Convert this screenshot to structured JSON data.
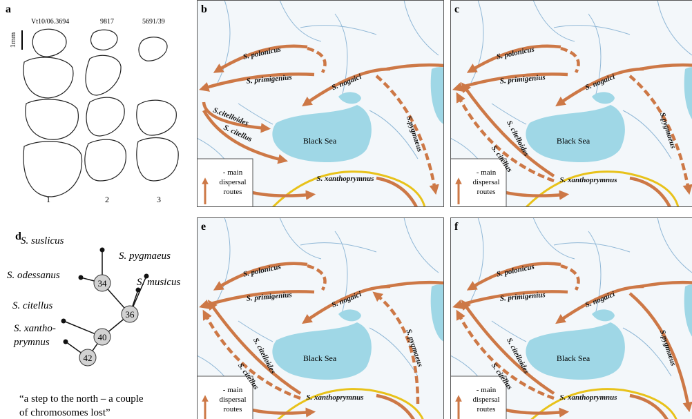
{
  "panel_a": {
    "label": "a",
    "specimens": [
      "Vt10/06.3694",
      "9817",
      "5691/39"
    ],
    "scale": "1mm",
    "numbers": [
      "1",
      "2",
      "3"
    ]
  },
  "maps": [
    {
      "label": "b",
      "species": [
        "S. polonicus",
        "S. primigenius",
        "S. nogaici",
        "S.citelloides",
        "S. citellus",
        "S.pygmaeus",
        "S. xanthoprymnus"
      ],
      "sea": "Black Sea",
      "legend": [
        "- main",
        "dispersal",
        "routes"
      ]
    },
    {
      "label": "c",
      "species": [
        "S. polonicus",
        "S. primigenius",
        "S. nogaici",
        "S. citelloides",
        "S. citellus",
        "S.pygmaeus",
        "S. xanthoprymnus"
      ],
      "sea": "Black Sea",
      "legend": [
        "- main",
        "dispersal",
        "routes"
      ]
    },
    {
      "label": "e",
      "species": [
        "S. polonicus",
        "S. primigenius",
        "S. nogaici",
        "S. citelloides",
        "S. citellus",
        "S. pygmaeus",
        "S. xanthoprymnus"
      ],
      "sea": "Black Sea",
      "legend": [
        "- main",
        "dispersal",
        "routes"
      ]
    },
    {
      "label": "f",
      "species": [
        "S. polonicus",
        "S. primigenius",
        "S. nogaici",
        "S. citelloides",
        "S. citellus",
        "S.pygmaeus",
        "S. xanthoprymnus"
      ],
      "sea": "Black Sea",
      "legend": [
        "- main",
        "dispersal",
        "routes"
      ]
    }
  ],
  "panel_d": {
    "label": "d",
    "species": [
      "S. suslicus",
      "S. odessanus",
      "S. pygmaeus",
      "S. musicus",
      "S. citellus"
    ],
    "last_species": [
      "S. xantho-",
      "prymnus"
    ],
    "nodes": [
      34,
      36,
      40,
      42
    ],
    "quote": [
      "“a step to the north – a couple",
      "of chromosomes lost”"
    ]
  }
}
